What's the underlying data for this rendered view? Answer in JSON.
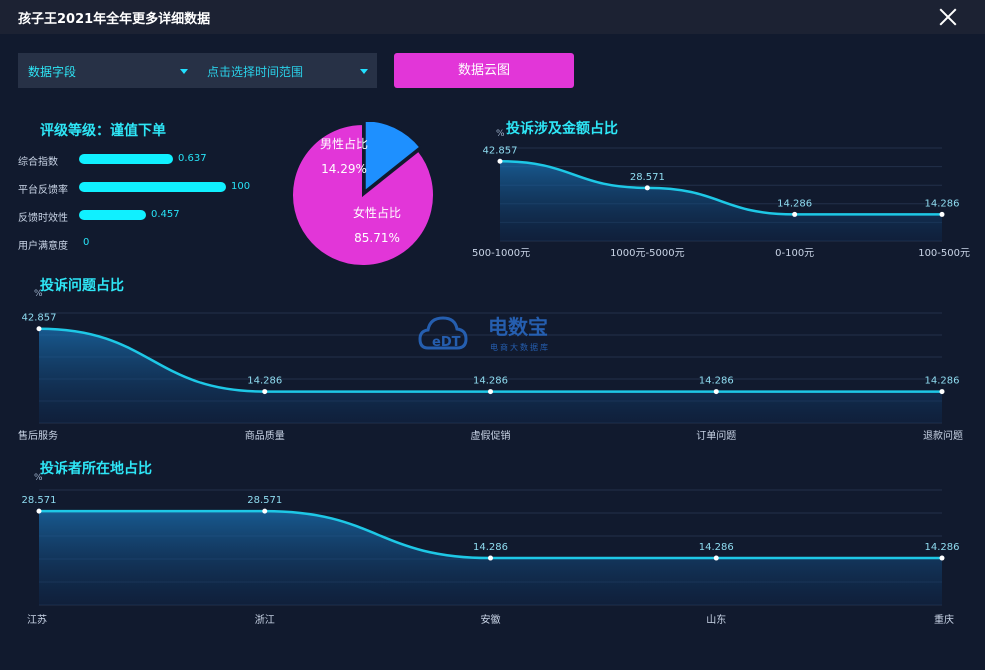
{
  "window": {
    "title": "孩子王2021年全年更多详细数据"
  },
  "toolbar": {
    "field_select": "数据字段",
    "time_select_placeholder": "点击选择时间范围",
    "cloud_button": "数据云图"
  },
  "rating": {
    "title": "评级等级：谨值下单",
    "metrics": [
      {
        "label": "综合指数",
        "value": "0.637",
        "fraction": 0.637
      },
      {
        "label": "平台反馈率",
        "value": "100",
        "fraction": 1.0
      },
      {
        "label": "反馈时效性",
        "value": "0.457",
        "fraction": 0.457
      },
      {
        "label": "用户满意度",
        "value": "0",
        "fraction": 0
      }
    ]
  },
  "watermark": {
    "name": "电数宝",
    "tagline": "电商大数据库",
    "logo_text": "eDT"
  },
  "colors": {
    "accent": "#2ee6f6",
    "pink": "#e236d8",
    "blue": "#1e90ff",
    "line": "#1ec8e6"
  },
  "chart_data": [
    {
      "type": "pie",
      "categories": [
        "男性占比",
        "女性占比"
      ],
      "values": [
        14.29,
        85.71
      ],
      "labels": [
        "14.29%",
        "85.71%"
      ]
    },
    {
      "type": "area",
      "title": "投诉涉及金额占比",
      "ylabel": "%",
      "categories": [
        "500-1000元",
        "1000元-5000元",
        "0-100元",
        "100-500元"
      ],
      "values": [
        42.857,
        28.571,
        14.286,
        14.286
      ],
      "ylim": [
        0,
        50
      ]
    },
    {
      "type": "area",
      "title": "投诉问题占比",
      "ylabel": "%",
      "categories": [
        "售后服务",
        "商品质量",
        "虚假促销",
        "订单问题",
        "退款问题"
      ],
      "values": [
        42.857,
        14.286,
        14.286,
        14.286,
        14.286
      ],
      "ylim": [
        0,
        50
      ]
    },
    {
      "type": "area",
      "title": "投诉者所在地占比",
      "ylabel": "%",
      "categories": [
        "江苏",
        "浙江",
        "安徽",
        "山东",
        "重庆"
      ],
      "values": [
        28.571,
        28.571,
        14.286,
        14.286,
        14.286
      ],
      "ylim": [
        0,
        35
      ]
    }
  ]
}
